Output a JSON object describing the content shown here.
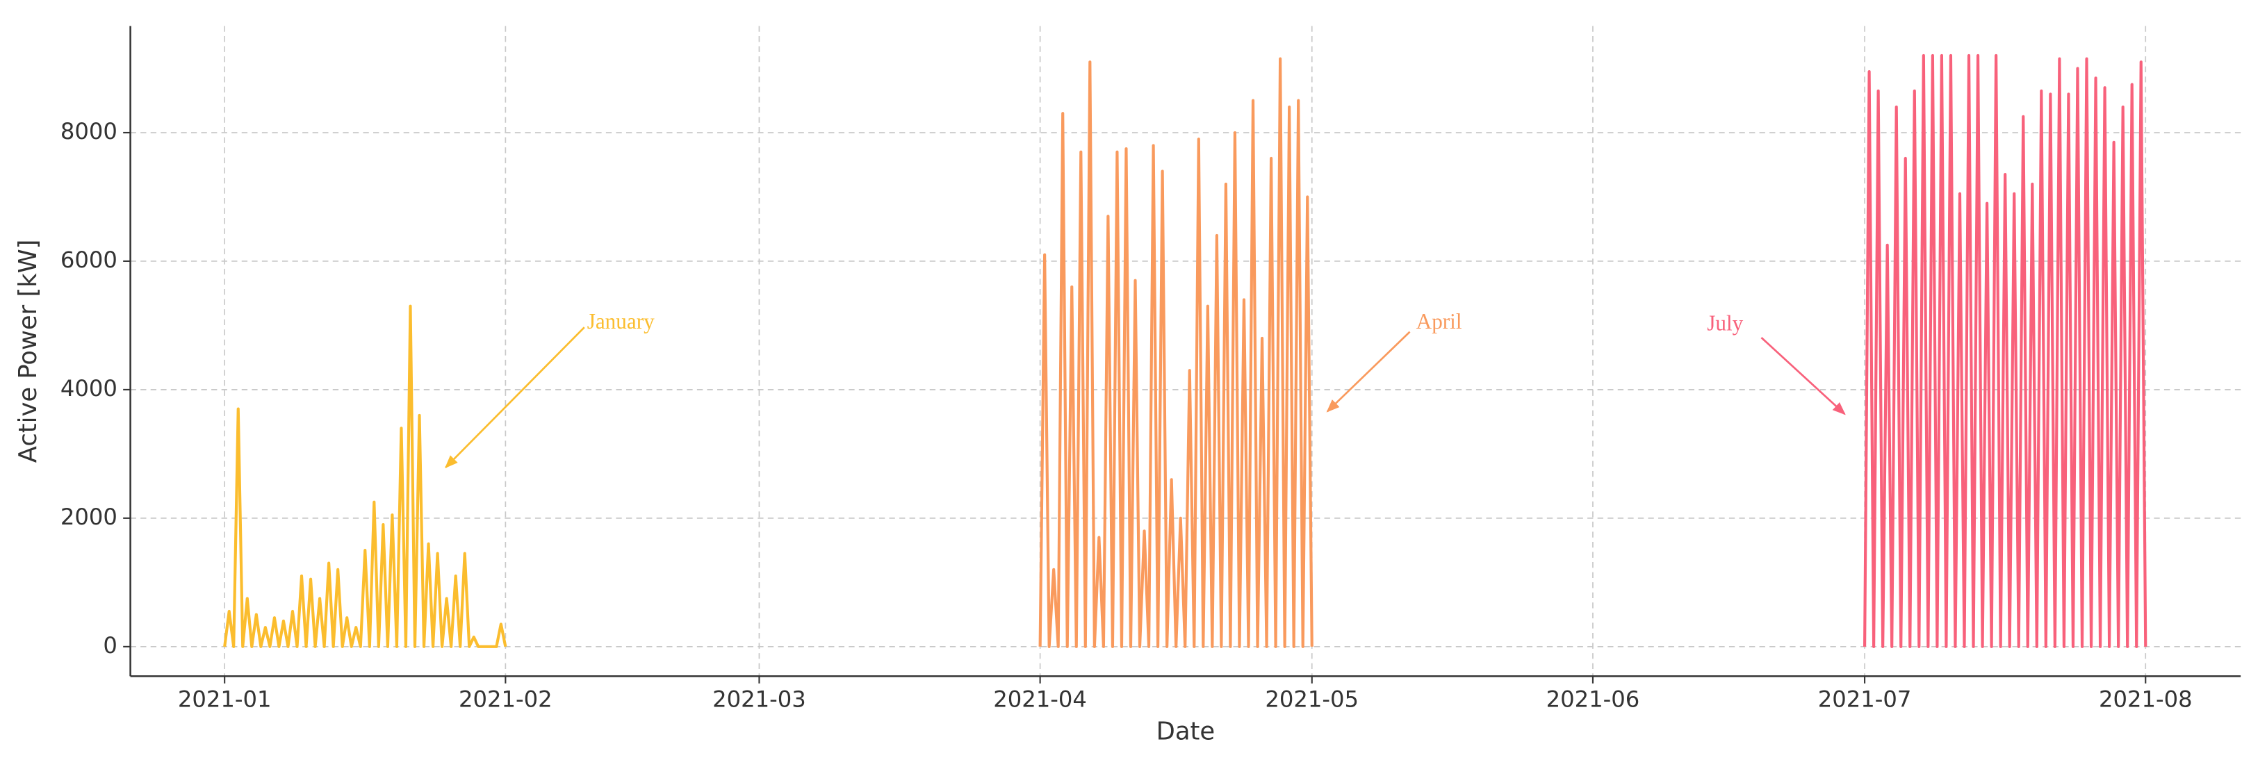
{
  "chart_data": {
    "type": "line",
    "xlabel": "Date",
    "ylabel": "Active Power [kW]",
    "xlim": [
      -10.4,
      222.5
    ],
    "xticks": [
      {
        "value": 0,
        "label": "2021-01"
      },
      {
        "value": 31,
        "label": "2021-02"
      },
      {
        "value": 59,
        "label": "2021-03"
      },
      {
        "value": 90,
        "label": "2021-04"
      },
      {
        "value": 120,
        "label": "2021-05"
      },
      {
        "value": 151,
        "label": "2021-06"
      },
      {
        "value": 181,
        "label": "2021-07"
      },
      {
        "value": 212,
        "label": "2021-08"
      }
    ],
    "ylim": [
      -460,
      9660
    ],
    "yticks": [
      0,
      2000,
      4000,
      6000,
      8000
    ],
    "grid": true,
    "annotations": [
      "January",
      "April",
      "July"
    ],
    "series": [
      {
        "color": "#fbbd2e",
        "x": [
          0,
          0.5,
          1,
          1.5,
          2,
          2.5,
          3,
          3.5,
          4,
          4.5,
          5,
          5.5,
          6,
          6.5,
          7,
          7.5,
          8,
          8.5,
          9,
          9.5,
          10,
          10.5,
          11,
          11.5,
          12,
          12.5,
          13,
          13.5,
          14,
          14.5,
          15,
          15.5,
          16,
          16.5,
          17,
          17.5,
          18,
          18.5,
          19,
          19.5,
          20,
          20.5,
          21,
          21.5,
          22,
          22.5,
          23,
          23.5,
          24,
          24.5,
          25,
          25.5,
          26,
          26.5,
          27,
          27.5,
          28,
          28.5,
          29,
          29.5,
          30,
          30.5,
          31
        ],
        "values": [
          0,
          550,
          0,
          3700,
          0,
          750,
          0,
          500,
          0,
          300,
          0,
          450,
          0,
          400,
          0,
          550,
          0,
          1100,
          0,
          1050,
          0,
          750,
          0,
          1300,
          0,
          1200,
          0,
          450,
          0,
          300,
          0,
          1500,
          0,
          2250,
          0,
          1900,
          0,
          2050,
          0,
          3400,
          0,
          5300,
          0,
          3600,
          0,
          1600,
          0,
          1450,
          0,
          750,
          0,
          1100,
          0,
          1450,
          0,
          150,
          0,
          0,
          0,
          0,
          0,
          350,
          0
        ]
      },
      {
        "color": "#f99a5d",
        "x": [
          90,
          90.5,
          91,
          91.5,
          92,
          92.5,
          93,
          93.5,
          94,
          94.5,
          95,
          95.5,
          96,
          96.5,
          97,
          97.5,
          98,
          98.5,
          99,
          99.5,
          100,
          100.5,
          101,
          101.5,
          102,
          102.5,
          103,
          103.5,
          104,
          104.5,
          105,
          105.5,
          106,
          106.5,
          107,
          107.5,
          108,
          108.5,
          109,
          109.5,
          110,
          110.5,
          111,
          111.5,
          112,
          112.5,
          113,
          113.5,
          114,
          114.5,
          115,
          115.5,
          116,
          116.5,
          117,
          117.5,
          118,
          118.5,
          119,
          119.5,
          120
        ],
        "values": [
          0,
          6100,
          0,
          1200,
          0,
          8300,
          0,
          5600,
          0,
          7700,
          0,
          9100,
          0,
          1700,
          0,
          6700,
          0,
          7700,
          0,
          7750,
          0,
          5700,
          0,
          1800,
          0,
          7800,
          0,
          7400,
          0,
          2600,
          0,
          2000,
          0,
          4300,
          0,
          7900,
          0,
          5300,
          0,
          6400,
          0,
          7200,
          0,
          8000,
          0,
          5400,
          0,
          8500,
          0,
          4800,
          0,
          7600,
          0,
          9150,
          0,
          8400,
          0,
          8500,
          0,
          7000,
          0
        ]
      },
      {
        "color": "#f8617b",
        "x": [
          181,
          181.5,
          182,
          182.5,
          183,
          183.5,
          184,
          184.5,
          185,
          185.5,
          186,
          186.5,
          187,
          187.5,
          188,
          188.5,
          189,
          189.5,
          190,
          190.5,
          191,
          191.5,
          192,
          192.5,
          193,
          193.5,
          194,
          194.5,
          195,
          195.5,
          196,
          196.5,
          197,
          197.5,
          198,
          198.5,
          199,
          199.5,
          200,
          200.5,
          201,
          201.5,
          202,
          202.5,
          203,
          203.5,
          204,
          204.5,
          205,
          205.5,
          206,
          206.5,
          207,
          207.5,
          208,
          208.5,
          209,
          209.5,
          210,
          210.5,
          211,
          211.5,
          212
        ],
        "values": [
          0,
          8950,
          0,
          8650,
          0,
          6250,
          0,
          8400,
          0,
          7600,
          0,
          8650,
          0,
          9200,
          0,
          9200,
          0,
          9200,
          0,
          9200,
          0,
          7050,
          0,
          9200,
          0,
          9200,
          0,
          6900,
          0,
          9200,
          0,
          7350,
          0,
          7050,
          0,
          8250,
          0,
          7200,
          0,
          8650,
          0,
          8600,
          0,
          9150,
          0,
          8600,
          0,
          9000,
          0,
          9150,
          0,
          8850,
          0,
          8700,
          0,
          7850,
          0,
          8400,
          0,
          8750,
          0,
          9100,
          0
        ]
      }
    ]
  }
}
